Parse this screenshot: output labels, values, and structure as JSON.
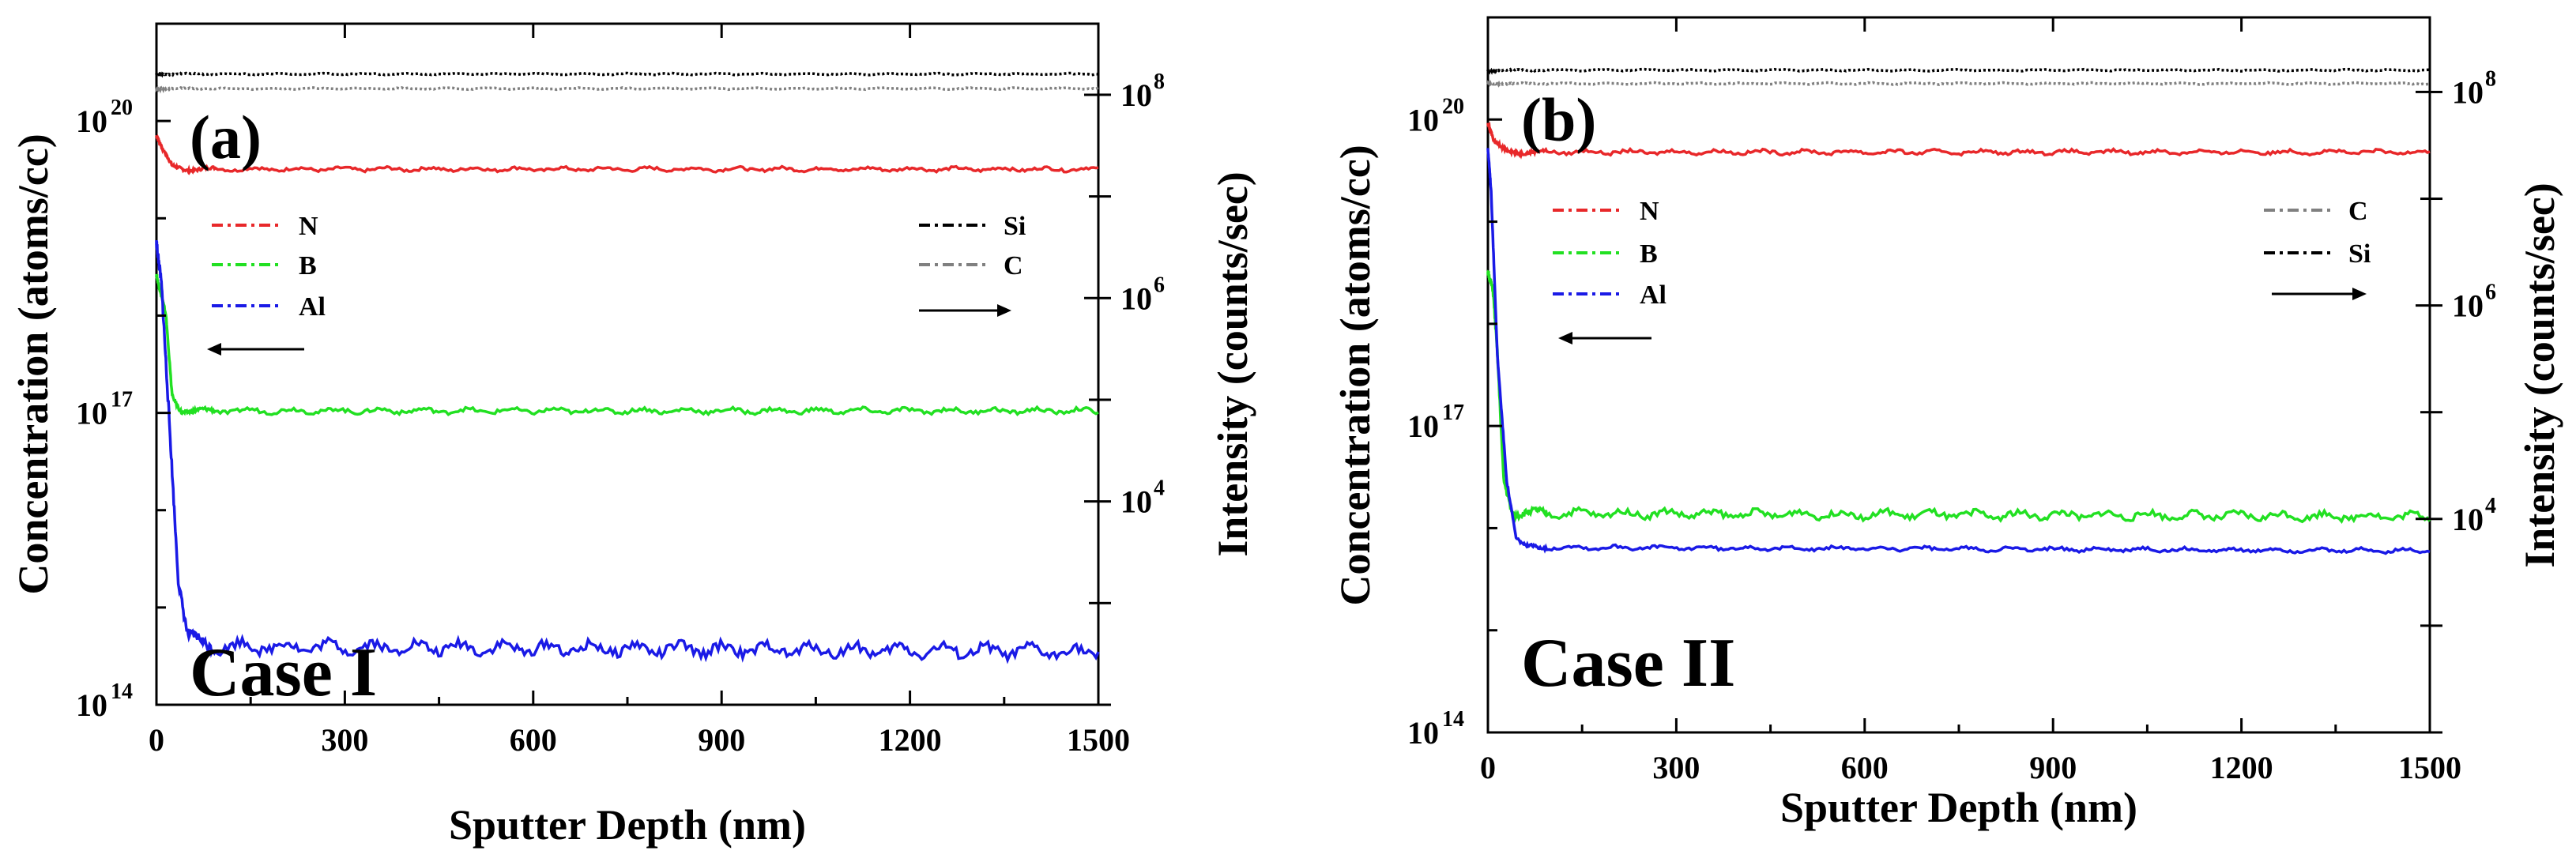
{
  "chart_data": [
    {
      "type": "line",
      "panel_label": "(a)",
      "case_label": "Case I",
      "case_color": "#000000",
      "xlabel": "Sputter Depth (nm)",
      "ylabel": "Concentration (atoms/cc)",
      "y2label": "Intensity (counts/sec)",
      "xlim": [
        0,
        1500
      ],
      "ylim": [
        100000000000000.0,
        1e+21
      ],
      "y2lim": [
        100,
        500000000.0
      ],
      "x_ticks": [
        "0",
        "300",
        "600",
        "900",
        "1200",
        "1500"
      ],
      "y_ticks": [
        {
          "base": "10",
          "exp": "14",
          "value": 100000000000000.0
        },
        {
          "base": "10",
          "exp": "17",
          "value": 1e+17
        },
        {
          "base": "10",
          "exp": "20",
          "value": 1e+20
        }
      ],
      "y2_ticks": [
        {
          "base": "10",
          "exp": "4",
          "value": 10000.0
        },
        {
          "base": "10",
          "exp": "6",
          "value": 1000000.0
        },
        {
          "base": "10",
          "exp": "8",
          "value": 100000000.0
        }
      ],
      "legend_left": [
        "N",
        "B",
        "Al"
      ],
      "legend_right": [
        "Si",
        "C"
      ],
      "series": [
        {
          "name": "N",
          "axis": "left",
          "color": "#e8282a",
          "x": [
            0,
            10,
            25,
            50,
            1500
          ],
          "values": [
            7e+19,
            5e+19,
            3.4e+19,
            3.2e+19,
            3.2e+19
          ],
          "noise": 0.03
        },
        {
          "name": "B",
          "axis": "left",
          "color": "#22e022",
          "x": [
            0,
            5,
            15,
            25,
            40,
            1500
          ],
          "values": [
            2.5e+18,
            1.8e+18,
            1e+18,
            1.5e+17,
            1.05e+17,
            1.05e+17
          ],
          "noise": 0.04
        },
        {
          "name": "Al",
          "axis": "left",
          "color": "#1a1ae6",
          "x": [
            0,
            8,
            20,
            35,
            50,
            80,
            1500
          ],
          "values": [
            5e+18,
            2e+18,
            1e+17,
            2000000000000000.0,
            500000000000000.0,
            400000000000000.0,
            350000000000000.0
          ],
          "noise": 0.1
        },
        {
          "name": "Si",
          "axis": "right",
          "color": "#000000",
          "x": [
            0,
            1500
          ],
          "values": [
            160000000.0,
            160000000.0
          ],
          "noise": 0.01
        },
        {
          "name": "C",
          "axis": "right",
          "color": "#808080",
          "x": [
            0,
            1500
          ],
          "values": [
            115000000.0,
            115000000.0
          ],
          "noise": 0.01
        }
      ]
    },
    {
      "type": "line",
      "panel_label": "(b)",
      "case_label": "Case II",
      "case_color": "#e8282a",
      "xlabel": "Sputter Depth (nm)",
      "ylabel": "Concentration (atoms/cc)",
      "y2label": "Intensity (counts/sec)",
      "xlim": [
        0,
        1500
      ],
      "ylim": [
        100000000000000.0,
        1e+21
      ],
      "y2lim": [
        100,
        500000000.0
      ],
      "x_ticks": [
        "0",
        "300",
        "600",
        "900",
        "1200",
        "1500"
      ],
      "y_ticks": [
        {
          "base": "10",
          "exp": "14",
          "value": 100000000000000.0
        },
        {
          "base": "10",
          "exp": "17",
          "value": 1e+17
        },
        {
          "base": "10",
          "exp": "20",
          "value": 1e+20
        }
      ],
      "y2_ticks": [
        {
          "base": "10",
          "exp": "4",
          "value": 10000.0
        },
        {
          "base": "10",
          "exp": "6",
          "value": 1000000.0
        },
        {
          "base": "10",
          "exp": "8",
          "value": 100000000.0
        }
      ],
      "legend_left": [
        "N",
        "B",
        "Al"
      ],
      "legend_right": [
        "C",
        "Si"
      ],
      "series": [
        {
          "name": "N",
          "axis": "left",
          "color": "#e8282a",
          "x": [
            0,
            10,
            25,
            50,
            1500
          ],
          "values": [
            9e+19,
            6e+19,
            5e+19,
            4.8e+19,
            4.8e+19
          ],
          "noise": 0.03
        },
        {
          "name": "B",
          "axis": "left",
          "color": "#22e022",
          "x": [
            0,
            8,
            15,
            25,
            40,
            1500
          ],
          "values": [
            3e+18,
            2e+18,
            5e+17,
            3e+16,
            1.4e+16,
            1.3e+16
          ],
          "noise": 0.06
        },
        {
          "name": "Al",
          "axis": "left",
          "color": "#1a1ae6",
          "x": [
            0,
            5,
            15,
            30,
            45,
            60,
            1500
          ],
          "values": [
            5e+19,
            2e+19,
            5e+17,
            3e+16,
            8000000000000000.0,
            6500000000000000.0,
            6000000000000000.0
          ],
          "noise": 0.03
        },
        {
          "name": "C",
          "axis": "right",
          "color": "#808080",
          "x": [
            0,
            1500
          ],
          "values": [
            120000000.0,
            120000000.0
          ],
          "noise": 0.01
        },
        {
          "name": "Si",
          "axis": "right",
          "color": "#000000",
          "x": [
            0,
            1500
          ],
          "values": [
            160000000.0,
            160000000.0
          ],
          "noise": 0.01
        }
      ]
    }
  ]
}
